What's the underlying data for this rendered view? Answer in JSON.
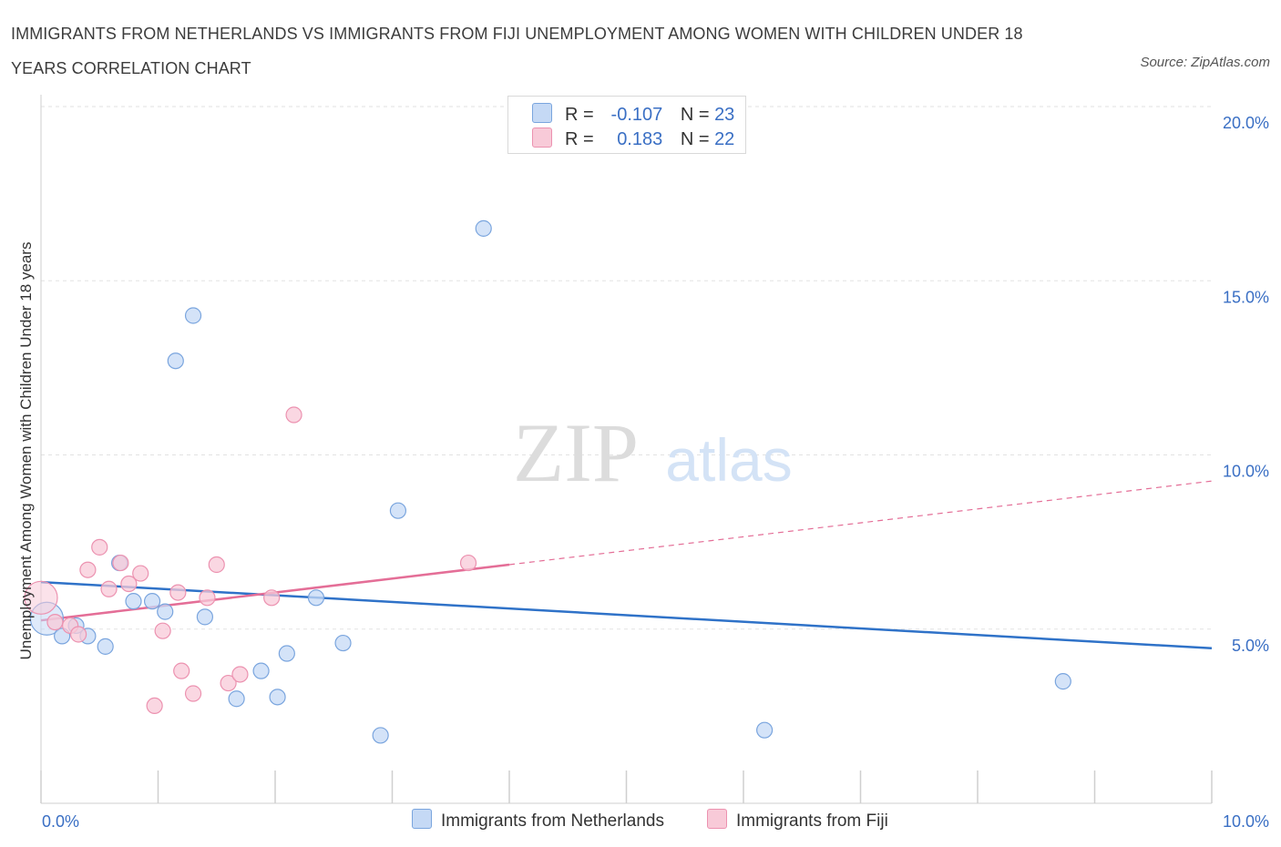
{
  "title": "IMMIGRANTS FROM NETHERLANDS VS IMMIGRANTS FROM FIJI UNEMPLOYMENT AMONG WOMEN WITH CHILDREN UNDER 18 YEARS CORRELATION CHART",
  "source": "Source: ZipAtlas.com",
  "watermark": {
    "zip": "ZIP",
    "atlas": "atlas"
  },
  "colors": {
    "netherlands_fill": "#c5d9f5",
    "netherlands_stroke": "#7aa5de",
    "netherlands_line": "#2f72c8",
    "fiji_fill": "#f8cad8",
    "fiji_stroke": "#ec92b0",
    "fiji_line": "#e46e97",
    "axis_label": "#3a6fc4"
  },
  "legend": {
    "rows": [
      {
        "r_label": "R =",
        "r_value": "-0.107",
        "n_label": "N =",
        "n_value": "23"
      },
      {
        "r_label": "R =",
        "r_value": "0.183",
        "n_label": "N =",
        "n_value": "22"
      }
    ]
  },
  "chart_data": {
    "type": "scatter",
    "xlabel": "",
    "ylabel": "Unemployment Among Women with Children Under 18 years",
    "xlim": [
      0,
      10
    ],
    "ylim": [
      0,
      20
    ],
    "x_tick_labels": [
      "0.0%",
      "10.0%"
    ],
    "y_tick_labels": [
      "5.0%",
      "10.0%",
      "15.0%",
      "20.0%"
    ],
    "y_ticks": [
      5,
      10,
      15,
      20
    ],
    "grid": true,
    "series": [
      {
        "name": "Immigrants from Netherlands",
        "color": "#7aa5de",
        "points": [
          [
            0.05,
            5.3
          ],
          [
            0.18,
            4.8
          ],
          [
            0.3,
            5.1
          ],
          [
            0.4,
            4.8
          ],
          [
            0.55,
            4.5
          ],
          [
            0.67,
            6.9
          ],
          [
            0.79,
            5.8
          ],
          [
            0.95,
            5.8
          ],
          [
            1.06,
            5.5
          ],
          [
            1.15,
            12.7
          ],
          [
            1.3,
            14.0
          ],
          [
            1.4,
            5.35
          ],
          [
            1.67,
            3.0
          ],
          [
            1.88,
            3.8
          ],
          [
            2.02,
            3.05
          ],
          [
            2.1,
            4.3
          ],
          [
            2.35,
            5.9
          ],
          [
            2.58,
            4.6
          ],
          [
            2.9,
            1.95
          ],
          [
            3.05,
            8.4
          ],
          [
            3.78,
            16.5
          ],
          [
            6.18,
            2.1
          ],
          [
            8.73,
            3.5
          ]
        ]
      },
      {
        "name": "Immigrants from Fiji",
        "color": "#ec92b0",
        "points": [
          [
            0.0,
            5.9
          ],
          [
            0.12,
            5.2
          ],
          [
            0.25,
            5.1
          ],
          [
            0.32,
            4.85
          ],
          [
            0.4,
            6.7
          ],
          [
            0.5,
            7.35
          ],
          [
            0.58,
            6.15
          ],
          [
            0.68,
            6.9
          ],
          [
            0.75,
            6.3
          ],
          [
            0.85,
            6.6
          ],
          [
            0.97,
            2.8
          ],
          [
            1.04,
            4.95
          ],
          [
            1.17,
            6.05
          ],
          [
            1.2,
            3.8
          ],
          [
            1.3,
            3.15
          ],
          [
            1.42,
            5.9
          ],
          [
            1.5,
            6.85
          ],
          [
            1.6,
            3.45
          ],
          [
            1.7,
            3.7
          ],
          [
            1.97,
            5.9
          ],
          [
            2.16,
            11.15
          ],
          [
            3.65,
            6.9
          ]
        ]
      }
    ],
    "trend_lines": [
      {
        "series": "Immigrants from Netherlands",
        "x": [
          0,
          10
        ],
        "y": [
          6.35,
          4.45
        ]
      },
      {
        "series": "Immigrants from Fiji",
        "solid_x": [
          0,
          4.0
        ],
        "dashed_x": [
          4.0,
          10
        ],
        "y_at_0": 5.25,
        "slope": 0.4
      }
    ]
  },
  "bottom_legend": [
    {
      "label": "Immigrants from Netherlands"
    },
    {
      "label": "Immigrants from Fiji"
    }
  ]
}
